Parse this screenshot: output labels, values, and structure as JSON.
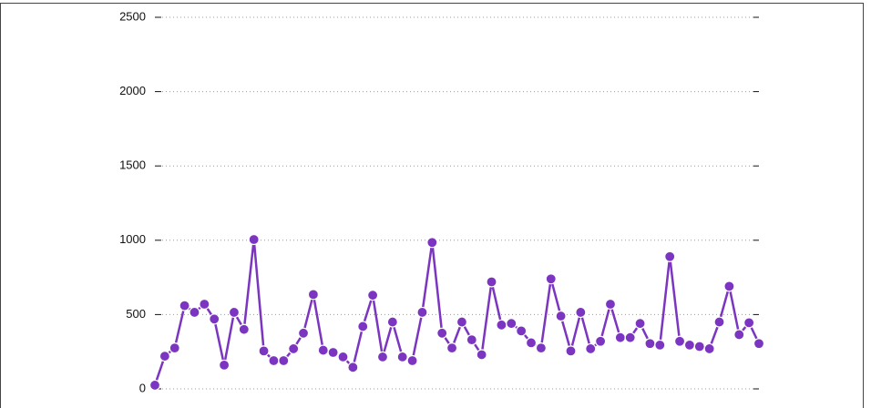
{
  "chart_data": {
    "type": "line",
    "categories": [
      null,
      null,
      null,
      null,
      null,
      null,
      null,
      null,
      null,
      null,
      null,
      null,
      null,
      null,
      null,
      null,
      null,
      null,
      null,
      null,
      null,
      null,
      null,
      null,
      null,
      null,
      null,
      null,
      null,
      null,
      null,
      null,
      null,
      null,
      null,
      null,
      null,
      null,
      null,
      null,
      null,
      null,
      null,
      null,
      null,
      null,
      null,
      null,
      null,
      null,
      null,
      null,
      null,
      null,
      null,
      null,
      null,
      null,
      null,
      null,
      null,
      null
    ],
    "values": [
      25,
      220,
      275,
      560,
      515,
      570,
      470,
      160,
      515,
      400,
      1005,
      255,
      190,
      190,
      270,
      375,
      635,
      260,
      245,
      215,
      145,
      420,
      630,
      215,
      450,
      215,
      190,
      515,
      985,
      375,
      275,
      450,
      330,
      230,
      720,
      430,
      440,
      390,
      310,
      275,
      740,
      490,
      255,
      515,
      270,
      320,
      570,
      345,
      345,
      440,
      305,
      295,
      890,
      320,
      295,
      285,
      270,
      450,
      690,
      365,
      445,
      305
    ],
    "color": "#7b35c0",
    "ylim": [
      0,
      2500
    ],
    "yticks": [
      0,
      500,
      1000,
      1500,
      2000,
      2500
    ],
    "grid": true
  }
}
